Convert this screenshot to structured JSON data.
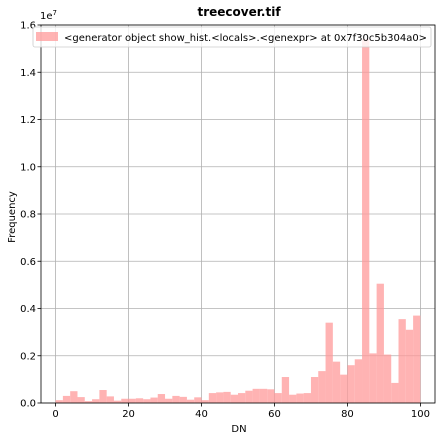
{
  "colors": {
    "bar": "#ff9999",
    "grid": "#b0b0b0",
    "axis": "#000000"
  },
  "chart_data": {
    "type": "bar",
    "title": "treecover.tif",
    "xlabel": "DN",
    "ylabel": "Frequency",
    "y_scale_label": "1e7",
    "xlim": [
      -4,
      104
    ],
    "ylim": [
      0,
      1.6
    ],
    "y_units": "1e7",
    "grid": true,
    "legend_location": "top",
    "legend": [
      "<generator object show_hist.<locals>.<genexpr> at 0x7f30c5b304a0>"
    ],
    "x_ticks": [
      0,
      20,
      40,
      60,
      80,
      100
    ],
    "x_tick_labels": [
      "0",
      "20",
      "40",
      "60",
      "80",
      "100"
    ],
    "y_ticks": [
      0.0,
      0.2,
      0.4,
      0.6,
      0.8,
      1.0,
      1.2,
      1.4,
      1.6
    ],
    "y_tick_labels": [
      "0.0",
      "0.2",
      "0.4",
      "0.6",
      "0.8",
      "1.0",
      "1.2",
      "1.4",
      "1.6"
    ],
    "bin_edges": [
      0,
      2,
      4,
      6,
      8,
      10,
      12,
      14,
      16,
      18,
      20,
      22,
      24,
      26,
      28,
      30,
      32,
      34,
      36,
      38,
      40,
      42,
      44,
      46,
      48,
      50,
      52,
      54,
      56,
      58,
      60,
      62,
      64,
      66,
      68,
      70,
      72,
      74,
      76,
      78,
      80,
      82,
      84,
      86,
      88,
      90,
      92,
      94,
      96,
      98,
      100
    ],
    "values": [
      0.012,
      0.03,
      0.05,
      0.025,
      0.008,
      0.016,
      0.055,
      0.028,
      0.01,
      0.018,
      0.018,
      0.02,
      0.016,
      0.023,
      0.038,
      0.018,
      0.03,
      0.026,
      0.014,
      0.024,
      0.012,
      0.042,
      0.045,
      0.047,
      0.035,
      0.042,
      0.052,
      0.06,
      0.06,
      0.058,
      0.042,
      0.11,
      0.035,
      0.04,
      0.042,
      0.11,
      0.135,
      0.34,
      0.175,
      0.12,
      0.16,
      0.185,
      1.54,
      0.21,
      0.505,
      0.205,
      0.085,
      0.355,
      0.31,
      0.37
    ]
  }
}
